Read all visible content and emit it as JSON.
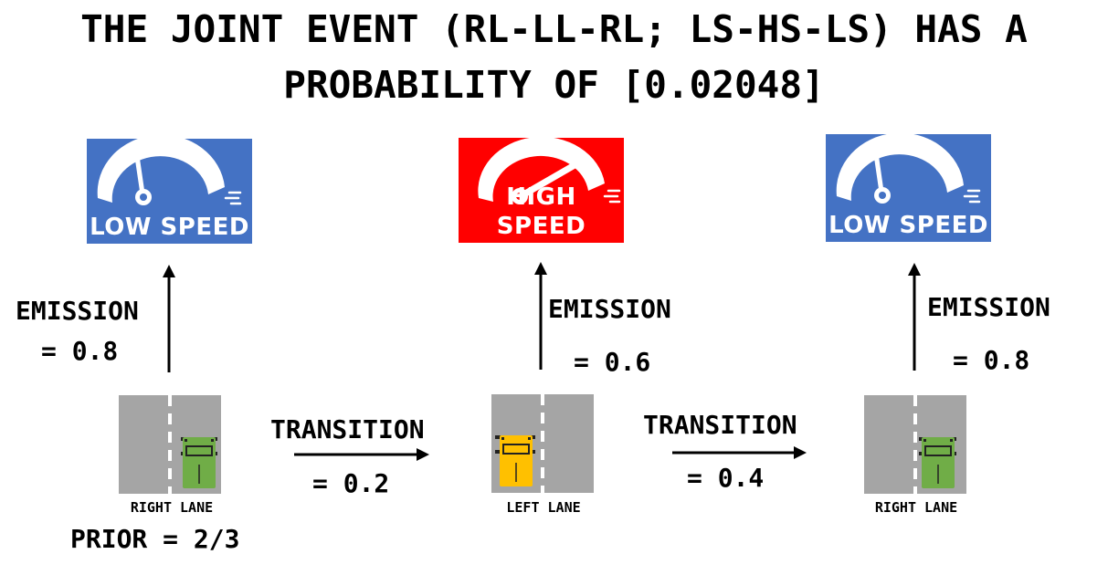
{
  "title": {
    "line1": "THE JOINT EVENT (RL-LL-RL; LS-HS-LS) HAS A",
    "line2": "PROBABILITY OF [0.02048]"
  },
  "states": [
    {
      "lane_label": "RIGHT LANE",
      "lane": "right",
      "truck_color": "#70ad47",
      "speed_label": "LOW SPEED",
      "speed_color": "#4472c4",
      "emission_label": "EMISSION",
      "emission_value": "= 0.8"
    },
    {
      "lane_label": "LEFT LANE",
      "lane": "left",
      "truck_color": "#ffc000",
      "speed_label": "HIGH SPEED",
      "speed_color": "#ff0000",
      "emission_label": "EMISSION",
      "emission_value": "= 0.6"
    },
    {
      "lane_label": "RIGHT LANE",
      "lane": "right",
      "truck_color": "#70ad47",
      "speed_label": "LOW SPEED",
      "speed_color": "#4472c4",
      "emission_label": "EMISSION",
      "emission_value": "= 0.8"
    }
  ],
  "transitions": [
    {
      "label": "TRANSITION",
      "value": "= 0.2"
    },
    {
      "label": "TRANSITION",
      "value": "= 0.4"
    }
  ],
  "prior": "PRIOR = 2/3",
  "icons": {
    "low_speed": "speedometer-low-icon",
    "high_speed": "speedometer-high-icon",
    "truck": "truck-icon"
  }
}
